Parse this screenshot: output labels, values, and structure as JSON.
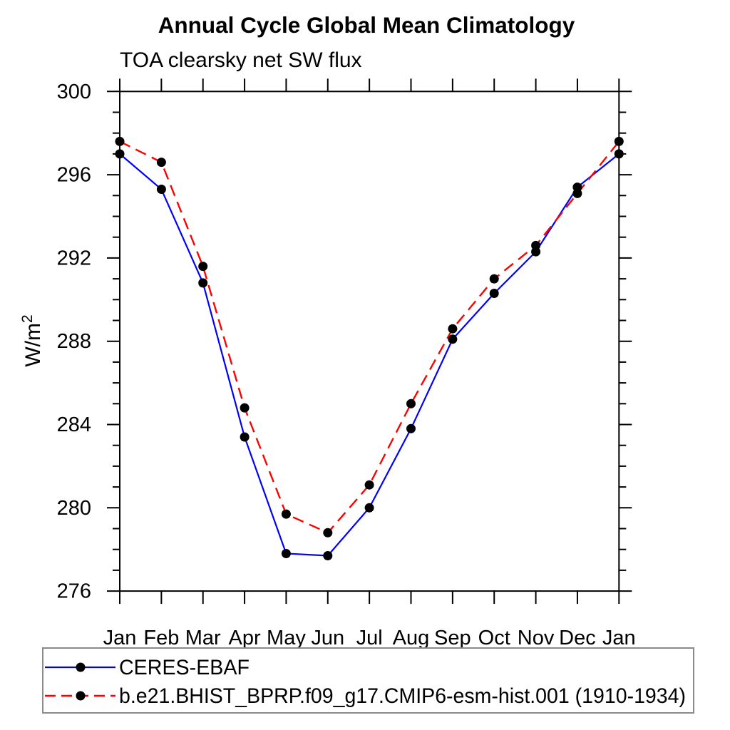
{
  "title": "Annual Cycle Global Mean Climatology",
  "subtitle": "TOA clearsky net SW flux",
  "y_axis": {
    "label_main": "W/m",
    "label_sup": "2"
  },
  "chart_data": {
    "type": "line",
    "categories": [
      "Jan",
      "Feb",
      "Mar",
      "Apr",
      "May",
      "Jun",
      "Jul",
      "Aug",
      "Sep",
      "Oct",
      "Nov",
      "Dec",
      "Jan"
    ],
    "ylabel": "W/m²",
    "xlabel": "",
    "ylim": [
      276,
      300
    ],
    "y_major_ticks": [
      276,
      280,
      284,
      288,
      292,
      296,
      300
    ],
    "y_minor_tick_step": 1,
    "grid": false,
    "legend_position": "bottom-left-box",
    "frame_color": "#000000",
    "legend_border_color": "#8a8a8a",
    "series": [
      {
        "name": "CERES-EBAF",
        "color": "#0000ff",
        "line_style": "solid",
        "marker": "filled-circle",
        "marker_color": "#000000",
        "values": [
          297.0,
          295.3,
          290.8,
          283.4,
          277.8,
          277.7,
          280.0,
          283.8,
          288.1,
          290.3,
          292.3,
          295.4,
          297.0
        ]
      },
      {
        "name": "b.e21.BHIST_BPRP.f09_g17.CMIP6-esm-hist.001 (1910-1934)",
        "color": "#ff0000",
        "line_style": "dashed",
        "marker": "filled-circle",
        "marker_color": "#000000",
        "values": [
          297.6,
          296.6,
          291.6,
          284.8,
          279.7,
          278.8,
          281.1,
          285.0,
          288.6,
          291.0,
          292.6,
          295.1,
          297.6
        ]
      }
    ]
  }
}
